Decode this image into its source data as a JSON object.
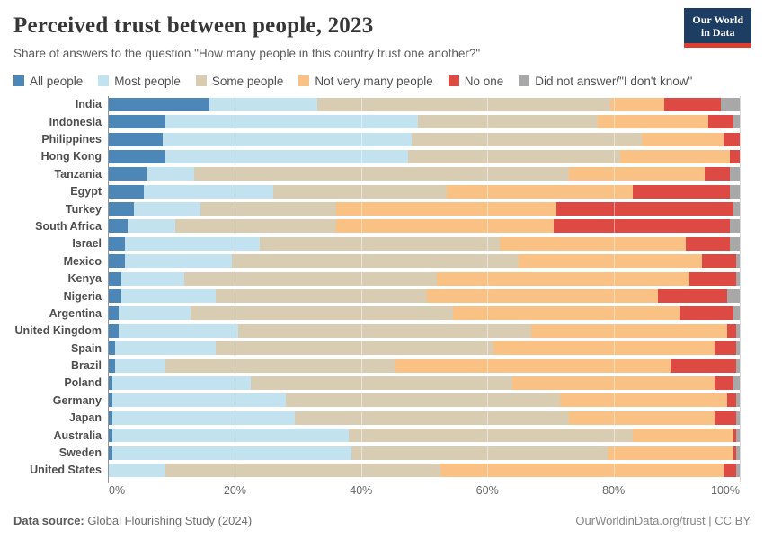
{
  "header": {
    "title": "Perceived trust between people, 2023",
    "subtitle": "Share of answers to the question \"How many people in this country trust one another?\"",
    "logo": {
      "line1": "Our World",
      "line2": "in Data"
    }
  },
  "footer": {
    "source_label": "Data source:",
    "source_value": "Global Flourishing Study (2024)",
    "attribution": "OurWorldinData.org/trust | CC BY"
  },
  "chart_data": {
    "type": "bar",
    "orientation": "horizontal",
    "stacked": true,
    "unit": "%",
    "xlim": [
      0,
      100
    ],
    "x_ticks": [
      "0%",
      "20%",
      "40%",
      "60%",
      "80%",
      "100%"
    ],
    "grid": true,
    "legend_position": "top",
    "categories": [
      "India",
      "Indonesia",
      "Philippines",
      "Hong Kong",
      "Tanzania",
      "Egypt",
      "Turkey",
      "South Africa",
      "Israel",
      "Mexico",
      "Kenya",
      "Nigeria",
      "Argentina",
      "United Kingdom",
      "Spain",
      "Brazil",
      "Poland",
      "Germany",
      "Japan",
      "Australia",
      "Sweden",
      "United States"
    ],
    "series": [
      {
        "name": "All people",
        "color": "#4c87b8",
        "values": [
          16,
          9,
          8.5,
          9,
          6,
          5.5,
          4,
          3,
          2.5,
          2.5,
          2,
          2,
          1.5,
          1.5,
          1,
          1,
          0.5,
          0.5,
          0.5,
          0.5,
          0.5,
          0
        ]
      },
      {
        "name": "Most people",
        "color": "#c2e2f0",
        "values": [
          17,
          40,
          39.5,
          38.5,
          7.5,
          20.5,
          10.5,
          7.5,
          21.5,
          17,
          10,
          15,
          11.5,
          19,
          16,
          8,
          22,
          27.5,
          29,
          37.5,
          38,
          9
        ]
      },
      {
        "name": "Some people",
        "color": "#d8ccb2",
        "values": [
          46.5,
          28.5,
          36.5,
          33.5,
          59.5,
          27.5,
          21.5,
          25.5,
          38,
          45.5,
          40,
          33.5,
          41.5,
          46.5,
          44,
          36.5,
          41.5,
          43.5,
          43.5,
          45,
          40.5,
          43.5
        ]
      },
      {
        "name": "Not very many people",
        "color": "#fac184",
        "values": [
          8.5,
          17.5,
          13,
          17.5,
          21.5,
          29.5,
          35,
          34.5,
          29.5,
          29,
          40,
          36.5,
          36,
          31,
          35,
          43.5,
          32,
          26.5,
          23,
          16,
          20,
          45
        ]
      },
      {
        "name": "No one",
        "color": "#dc4a43",
        "values": [
          9,
          4,
          2.5,
          1.5,
          4,
          15.5,
          28,
          28,
          7,
          5.5,
          7.5,
          11,
          8.5,
          1.5,
          3.5,
          10.5,
          3,
          1.5,
          3.5,
          0.5,
          0.5,
          2
        ]
      },
      {
        "name": "Did not answer/\"I don't know\"",
        "color": "#a8a8a8",
        "values": [
          3,
          1,
          0,
          0,
          1.5,
          1.5,
          1,
          1.5,
          1.5,
          0.5,
          0.5,
          2,
          1,
          0.5,
          0.5,
          0.5,
          1,
          0.5,
          0.5,
          0.5,
          0.5,
          0.5
        ]
      }
    ]
  }
}
